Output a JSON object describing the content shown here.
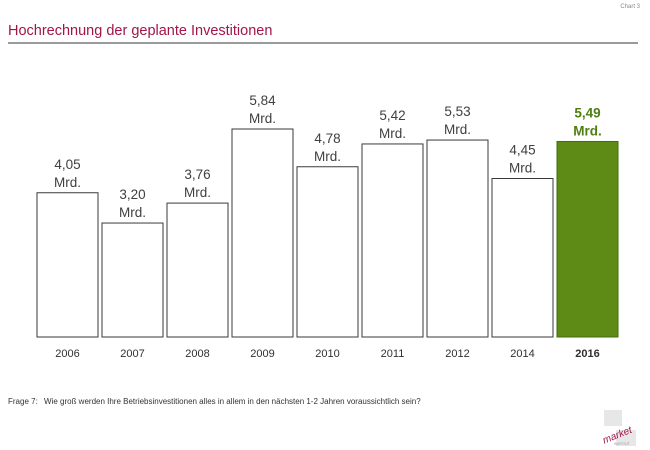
{
  "header": {
    "chart_label": "Chart 3",
    "title": "Hochrechnung der geplante Investitionen"
  },
  "footer": {
    "question_number": "Frage 7:",
    "question_text": "Wie groß werden Ihre Betriebsinvestitionen alles in allem in den nächsten 1-2 Jahren voraussichtlich sein?"
  },
  "logo": {
    "wordmark": "market",
    "subtext": "INSTITUT"
  },
  "colors": {
    "title": "#a2144a",
    "highlight_bar": "#5d8b16",
    "highlight_text": "#4e7e12",
    "bar_outline": "#3a3a3a"
  },
  "chart_data": {
    "type": "bar",
    "title": "",
    "xlabel": "",
    "ylabel": "",
    "categories": [
      "2006",
      "2007",
      "2008",
      "2009",
      "2010",
      "2011",
      "2012",
      "2014",
      "2016"
    ],
    "values": [
      4.05,
      3.2,
      3.76,
      5.84,
      4.78,
      5.42,
      5.53,
      4.45,
      5.49
    ],
    "value_labels": [
      "4,05",
      "3,20",
      "3,76",
      "5,84",
      "4,78",
      "5,42",
      "5,53",
      "4,45",
      "5,49"
    ],
    "unit": "Mrd.",
    "highlight_index": 8,
    "ylim": [
      0,
      6
    ],
    "grid": false,
    "legend": "none"
  }
}
